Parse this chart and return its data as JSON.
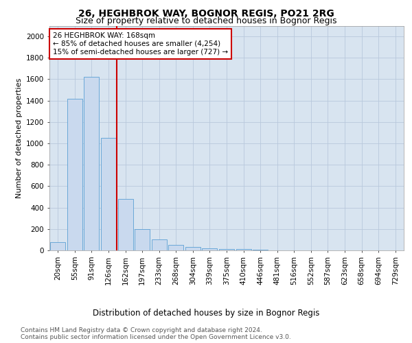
{
  "title1": "26, HEGHBROK WAY, BOGNOR REGIS, PO21 2RG",
  "title2": "Size of property relative to detached houses in Bognor Regis",
  "xlabel": "Distribution of detached houses by size in Bognor Regis",
  "ylabel": "Number of detached properties",
  "categories": [
    "20sqm",
    "55sqm",
    "91sqm",
    "126sqm",
    "162sqm",
    "197sqm",
    "233sqm",
    "268sqm",
    "304sqm",
    "339sqm",
    "375sqm",
    "410sqm",
    "446sqm",
    "481sqm",
    "516sqm",
    "552sqm",
    "587sqm",
    "623sqm",
    "658sqm",
    "694sqm",
    "729sqm"
  ],
  "values": [
    80,
    1420,
    1620,
    1050,
    480,
    200,
    100,
    50,
    30,
    22,
    15,
    10,
    5,
    3,
    2,
    2,
    1,
    1,
    1,
    0,
    0
  ],
  "bar_color": "#c9d9ee",
  "bar_edge_color": "#5a9fd4",
  "annotation_text": "26 HEGHBROK WAY: 168sqm\n← 85% of detached houses are smaller (4,254)\n15% of semi-detached houses are larger (727) →",
  "annotation_box_color": "#ffffff",
  "annotation_box_edge_color": "#cc0000",
  "vline_color": "#cc0000",
  "vline_x_index": 3.5,
  "ylim": [
    0,
    2100
  ],
  "yticks": [
    0,
    200,
    400,
    600,
    800,
    1000,
    1200,
    1400,
    1600,
    1800,
    2000
  ],
  "grid_color": "#b8c8dc",
  "plot_bg_color": "#d8e4f0",
  "footer1": "Contains HM Land Registry data © Crown copyright and database right 2024.",
  "footer2": "Contains public sector information licensed under the Open Government Licence v3.0.",
  "title1_fontsize": 10,
  "title2_fontsize": 9,
  "xlabel_fontsize": 8.5,
  "ylabel_fontsize": 8,
  "tick_fontsize": 7.5,
  "annotation_fontsize": 7.5,
  "footer_fontsize": 6.5
}
